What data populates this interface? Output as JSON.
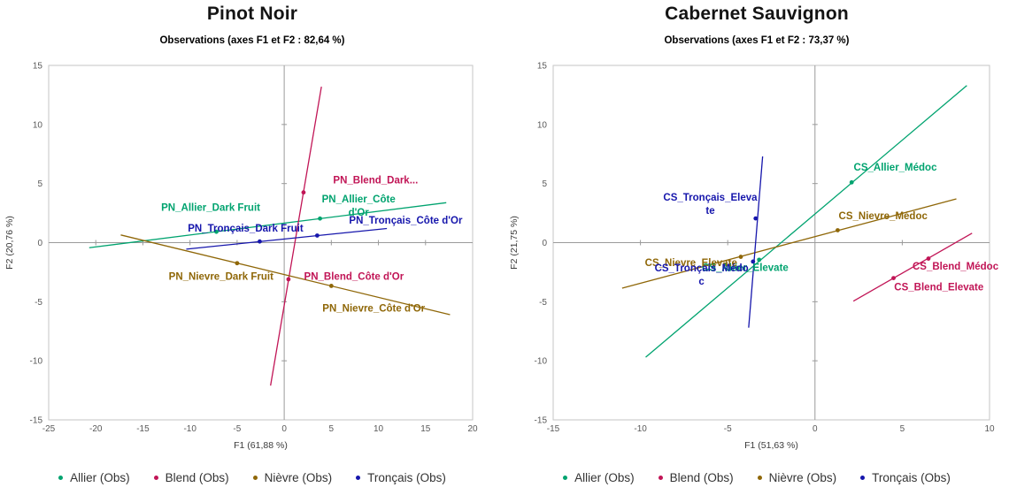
{
  "chart_data": [
    {
      "type": "scatter",
      "title": "Pinot Noir",
      "subtitle": "Observations (axes F1 et F2 : 82,64 %)",
      "xlabel": "F1 (61,88 %)",
      "ylabel": "F2 (20,76 %)",
      "xlim": [
        -25,
        20
      ],
      "ylim": [
        -15,
        15
      ],
      "xticks": [
        -25,
        -20,
        -15,
        -10,
        -5,
        0,
        5,
        10,
        15,
        20
      ],
      "yticks": [
        -15,
        -10,
        -5,
        0,
        5,
        10,
        15
      ],
      "grid": false,
      "legend_position": "bottom",
      "legend": [
        {
          "label": "Allier (Obs)",
          "color": "#00A36F"
        },
        {
          "label": "Blend (Obs)",
          "color": "#C11556"
        },
        {
          "label": "Nièvre (Obs)",
          "color": "#8F6708"
        },
        {
          "label": "Tronçais (Obs)",
          "color": "#1616AC"
        }
      ],
      "series": [
        {
          "name": "Allier",
          "color": "#00A36F",
          "trend_line": [
            [
              -20.7,
              -0.43
            ],
            [
              17.2,
              3.38
            ]
          ],
          "points": [
            {
              "x": -7.2,
              "y": 0.92,
              "label": "PN_Allier_Dark Fruit",
              "label_lines": [
                "PN_Allier_Dark Fruit"
              ],
              "lx": -7.8,
              "ly": 3.0
            },
            {
              "x": 3.8,
              "y": 2.04,
              "label": "PN_Allier_Côte d'Or",
              "label_lines": [
                "PN_Allier_Côte",
                "d'Or"
              ],
              "lx": 7.9,
              "ly": 3.7
            }
          ]
        },
        {
          "name": "Blend",
          "color": "#C11556",
          "trend_line": [
            [
              -1.45,
              -12.1
            ],
            [
              3.95,
              13.2
            ]
          ],
          "points": [
            {
              "x": 2.05,
              "y": 4.25,
              "label": "PN_Blend_Dark...",
              "label_lines": [
                "PN_Blend_Dark..."
              ],
              "lx": 9.7,
              "ly": 5.3
            },
            {
              "x": 0.45,
              "y": -3.1,
              "label": "PN_Blend_Côte d'Or",
              "label_lines": [
                "PN_Blend_Côte d'Or"
              ],
              "lx": 7.4,
              "ly": -2.85
            }
          ]
        },
        {
          "name": "Nièvre",
          "color": "#8F6708",
          "trend_line": [
            [
              -17.35,
              0.65
            ],
            [
              17.6,
              -6.1
            ]
          ],
          "points": [
            {
              "x": -5.0,
              "y": -1.74,
              "label": "PN_Nievre_Dark Fruit",
              "label_lines": [
                "PN_Nievre_Dark Fruit"
              ],
              "lx": -6.7,
              "ly": -2.85
            },
            {
              "x": 5.0,
              "y": -3.66,
              "label": "PN_Nievre_Côte d'Or",
              "label_lines": [
                "PN_Nievre_Côte d'Or"
              ],
              "lx": 9.5,
              "ly": -5.55
            }
          ]
        },
        {
          "name": "Tronçais",
          "color": "#1616AC",
          "trend_line": [
            [
              -10.4,
              -0.55
            ],
            [
              10.9,
              1.2
            ]
          ],
          "points": [
            {
              "x": -2.6,
              "y": 0.1,
              "label": "PN_Tronçais_Dark Fruit",
              "label_lines": [
                "PN_Tronçais_Dark Fruit"
              ],
              "lx": -4.1,
              "ly": 1.25
            },
            {
              "x": 3.5,
              "y": 0.6,
              "label": "PN_Tronçais_Côte d'Or",
              "label_lines": [
                "PN_Tronçais_Côte d'Or"
              ],
              "lx": 12.9,
              "ly": 1.9
            }
          ]
        }
      ]
    },
    {
      "type": "scatter",
      "title": "Cabernet Sauvignon",
      "subtitle": "Observations (axes F1 et F2 : 73,37 %)",
      "xlabel": "F1 (51,63 %)",
      "ylabel": "F2 (21,75 %)",
      "xlim": [
        -15,
        10
      ],
      "ylim": [
        -15,
        15
      ],
      "xticks": [
        -15,
        -10,
        -5,
        0,
        5,
        10
      ],
      "yticks": [
        -15,
        -10,
        -5,
        0,
        5,
        10,
        15
      ],
      "grid": false,
      "legend_position": "bottom",
      "legend": [
        {
          "label": "Allier (Obs)",
          "color": "#00A36F"
        },
        {
          "label": "Blend (Obs)",
          "color": "#C11556"
        },
        {
          "label": "Nièvre (Obs)",
          "color": "#8F6708"
        },
        {
          "label": "Tronçais (Obs)",
          "color": "#1616AC"
        }
      ],
      "series": [
        {
          "name": "Allier",
          "color": "#00A36F",
          "trend_line": [
            [
              -9.7,
              -9.7
            ],
            [
              8.7,
              13.3
            ]
          ],
          "points": [
            {
              "x": -3.2,
              "y": -1.45,
              "label": "CS_Allier_Elevate",
              "label_lines": [
                "CS_Allier_Elevate"
              ],
              "lx": -4.0,
              "ly": -2.1
            },
            {
              "x": 2.1,
              "y": 5.1,
              "label": "CS_Allier_Médoc",
              "label_lines": [
                "CS_Allier_Médoc"
              ],
              "lx": 4.6,
              "ly": 6.4
            }
          ]
        },
        {
          "name": "Blend",
          "color": "#C11556",
          "trend_line": [
            [
              2.2,
              -4.95
            ],
            [
              9.0,
              0.8
            ]
          ],
          "points": [
            {
              "x": 4.5,
              "y": -3.0,
              "label": "CS_Blend_Elevate",
              "label_lines": [
                "CS_Blend_Elevate"
              ],
              "lx": 7.1,
              "ly": -3.75
            },
            {
              "x": 6.5,
              "y": -1.35,
              "label": "CS_Blend_Médoc",
              "label_lines": [
                "CS_Blend_Médoc"
              ],
              "lx": 8.05,
              "ly": -2.0
            }
          ]
        },
        {
          "name": "Nièvre",
          "color": "#8F6708",
          "trend_line": [
            [
              -11.05,
              -3.85
            ],
            [
              8.1,
              3.7
            ]
          ],
          "points": [
            {
              "x": -4.25,
              "y": -1.2,
              "label": "CS_Nievre_Elevate",
              "label_lines": [
                "CS_Nievre_Elevate"
              ],
              "lx": -7.1,
              "ly": -1.7
            },
            {
              "x": 1.3,
              "y": 1.05,
              "label": "CS_Nievre_Médoc",
              "label_lines": [
                "CS_Nievre_Médoc"
              ],
              "lx": 3.9,
              "ly": 2.3
            }
          ]
        },
        {
          "name": "Tronçais",
          "color": "#1616AC",
          "trend_line": [
            [
              -3.8,
              -7.2
            ],
            [
              -3.0,
              7.3
            ]
          ],
          "points": [
            {
              "x": -3.55,
              "y": -1.6,
              "label": "CS_Tronçais_Médoc",
              "label_lines": [
                "CS_Tronçais_Médo",
                "c"
              ],
              "lx": -6.5,
              "ly": -2.15
            },
            {
              "x": -3.4,
              "y": 2.05,
              "label": "CS_Tronçais_Elevate",
              "label_lines": [
                "CS_Tronçais_Eleva",
                "te"
              ],
              "lx": -6.0,
              "ly": 3.85
            }
          ]
        }
      ]
    }
  ]
}
